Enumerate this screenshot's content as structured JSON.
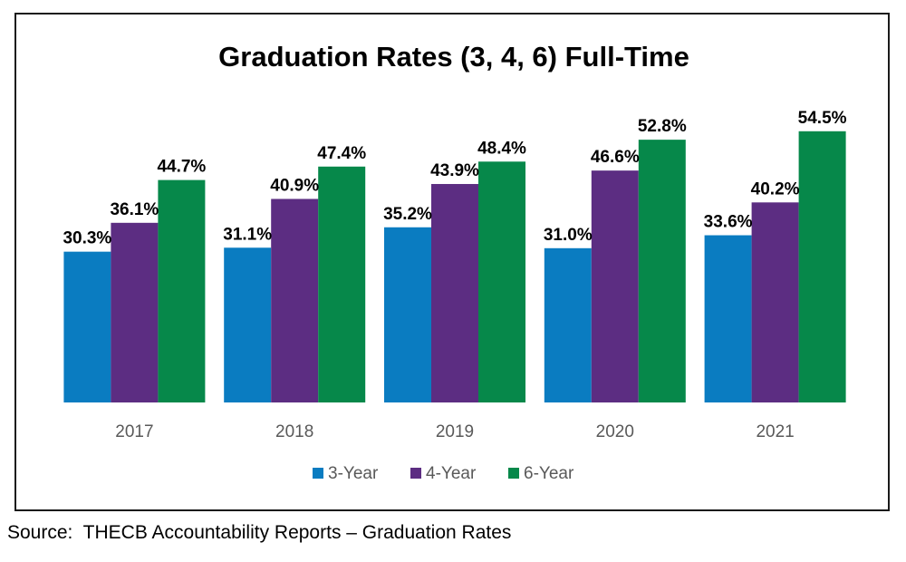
{
  "chart_data": {
    "type": "bar",
    "title": "Graduation Rates (3, 4, 6) Full-Time",
    "categories": [
      "2017",
      "2018",
      "2019",
      "2020",
      "2021"
    ],
    "series": [
      {
        "name": "3-Year",
        "color": "#0A7CC1",
        "values": [
          30.3,
          31.1,
          35.2,
          31.0,
          33.6
        ],
        "labels": [
          "30.3%",
          "31.1%",
          "35.2%",
          "31.0%",
          "33.6%"
        ]
      },
      {
        "name": "4-Year",
        "color": "#5C2D82",
        "values": [
          36.1,
          40.9,
          43.9,
          46.6,
          40.2
        ],
        "labels": [
          "36.1%",
          "40.9%",
          "43.9%",
          "46.6%",
          "40.2%"
        ]
      },
      {
        "name": "6-Year",
        "color": "#06884A",
        "values": [
          44.7,
          47.4,
          48.4,
          52.8,
          54.5
        ],
        "labels": [
          "44.7%",
          "47.4%",
          "48.4%",
          "52.8%",
          "54.5%"
        ]
      }
    ],
    "ylim": [
      0,
      60
    ],
    "xlabel": "",
    "ylabel": "",
    "grid": false,
    "legend_position": "bottom"
  },
  "footer": {
    "source": "Source:  THECB Accountability Reports – Graduation Rates"
  }
}
